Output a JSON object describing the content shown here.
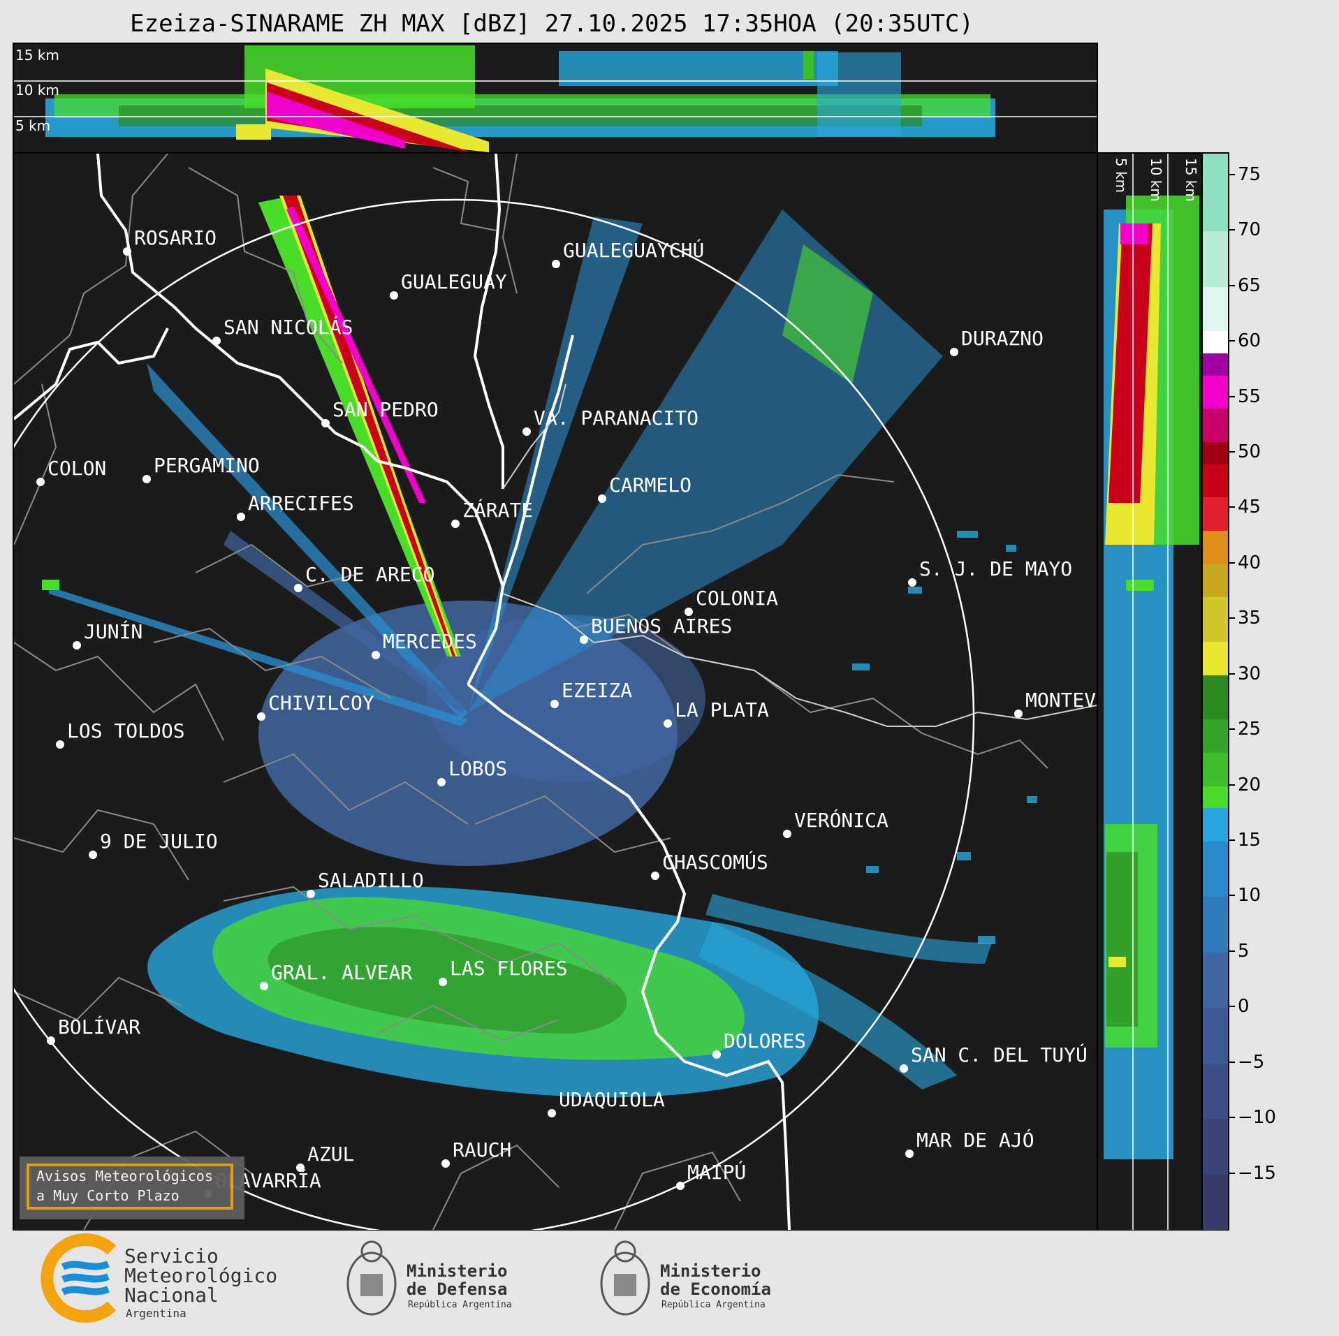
{
  "title": "Ezeiza-SINARAME ZH MAX [dBZ] 27.10.2025 17:35HOA (20:35UTC)",
  "top_panel": {
    "height_labels": [
      "15 km",
      "10 km",
      "5 km"
    ]
  },
  "side_panel": {
    "height_labels": [
      "5 km",
      "10 km",
      "15 km"
    ]
  },
  "cities": [
    {
      "name": "ROSARIO"
    },
    {
      "name": "GUALEGUAYCHÚ"
    },
    {
      "name": "GUALEGUAY"
    },
    {
      "name": "SAN NICOLÁS"
    },
    {
      "name": "DURAZNO"
    },
    {
      "name": "SAN PEDRO"
    },
    {
      "name": "VA. PARANACITO"
    },
    {
      "name": "COLON"
    },
    {
      "name": "PERGAMINO"
    },
    {
      "name": "CARMELO"
    },
    {
      "name": "ARRECIFES"
    },
    {
      "name": "ZÁRATE"
    },
    {
      "name": "S. J. DE MAYO"
    },
    {
      "name": "C. DE ARECO"
    },
    {
      "name": "COLONIA"
    },
    {
      "name": "JUNÍN"
    },
    {
      "name": "BUENOS AIRES"
    },
    {
      "name": "MERCEDES"
    },
    {
      "name": "EZEIZA"
    },
    {
      "name": "MONTEVIDEO"
    },
    {
      "name": "CHIVILCOY"
    },
    {
      "name": "LA PLATA"
    },
    {
      "name": "LOS TOLDOS"
    },
    {
      "name": "LOBOS"
    },
    {
      "name": "VERÓNICA"
    },
    {
      "name": "9 DE JULIO"
    },
    {
      "name": "CHASCOMÚS"
    },
    {
      "name": "SALADILLO"
    },
    {
      "name": "GRAL. ALVEAR"
    },
    {
      "name": "LAS FLORES"
    },
    {
      "name": "BOLÍVAR"
    },
    {
      "name": "DOLORES"
    },
    {
      "name": "SAN C. DEL TUYÚ"
    },
    {
      "name": "UDAQUIOLA"
    },
    {
      "name": "AZUL"
    },
    {
      "name": "RAUCH"
    },
    {
      "name": "MAR DE AJÓ"
    },
    {
      "name": "OLAVARRÍA"
    },
    {
      "name": "MAIPÚ"
    }
  ],
  "colorbar": {
    "unit": "dBZ",
    "range": [
      -20,
      77
    ],
    "ticks": [
      "75",
      "70",
      "65",
      "60",
      "55",
      "50",
      "45",
      "40",
      "35",
      "30",
      "25",
      "20",
      "15",
      "10",
      "5",
      "0",
      "−5",
      "−10",
      "−15"
    ],
    "tick_values": [
      75,
      70,
      65,
      60,
      55,
      50,
      45,
      40,
      35,
      30,
      25,
      20,
      15,
      10,
      5,
      0,
      -5,
      -10,
      -15
    ],
    "stops": [
      {
        "from": -20,
        "color": "#3a3a6a"
      },
      {
        "from": -15,
        "color": "#3b4478"
      },
      {
        "from": -10,
        "color": "#3c4f86"
      },
      {
        "from": -5,
        "color": "#3e5a93"
      },
      {
        "from": 0,
        "color": "#3f66a0"
      },
      {
        "from": 5,
        "color": "#2f7ab8"
      },
      {
        "from": 10,
        "color": "#2b8ccc"
      },
      {
        "from": 15,
        "color": "#29a6de"
      },
      {
        "from": 18,
        "color": "#49dd2a"
      },
      {
        "from": 20,
        "color": "#3fbe2b"
      },
      {
        "from": 23,
        "color": "#35a22a"
      },
      {
        "from": 26,
        "color": "#2c8a24"
      },
      {
        "from": 30,
        "color": "#e8e832"
      },
      {
        "from": 33,
        "color": "#cfc72c"
      },
      {
        "from": 37,
        "color": "#c8a81c"
      },
      {
        "from": 40,
        "color": "#e0901a"
      },
      {
        "from": 43,
        "color": "#e0202a"
      },
      {
        "from": 46,
        "color": "#c8001a"
      },
      {
        "from": 49,
        "color": "#a00010"
      },
      {
        "from": 51,
        "color": "#c8006a"
      },
      {
        "from": 54,
        "color": "#f000c8"
      },
      {
        "from": 57,
        "color": "#a000a0"
      },
      {
        "from": 59,
        "color": "#ffffff"
      },
      {
        "from": 61,
        "color": "#dff6ec"
      },
      {
        "from": 65,
        "color": "#b8ecd6"
      },
      {
        "from": 70,
        "color": "#8fe0c0"
      }
    ]
  },
  "warning_box": {
    "line1": "Avisos Meteorológicos",
    "line2": "a Muy Corto Plazo"
  },
  "footer": {
    "smn": {
      "line1": "Servicio",
      "line2": "Meteorológico",
      "line3": "Nacional",
      "line4": "Argentina"
    },
    "defensa": {
      "line1": "Ministerio",
      "line2": "de Defensa",
      "line3": "República Argentina"
    },
    "economia": {
      "line1": "Ministerio",
      "line2": "de Economía",
      "line3": "República Argentina"
    }
  },
  "colors": {
    "background": "#1b1b1b",
    "coast": "#ffffff",
    "borders": "#8a8a8a",
    "accent_orange": "#f2a30e",
    "smn_blue": "#1a8fd6"
  }
}
